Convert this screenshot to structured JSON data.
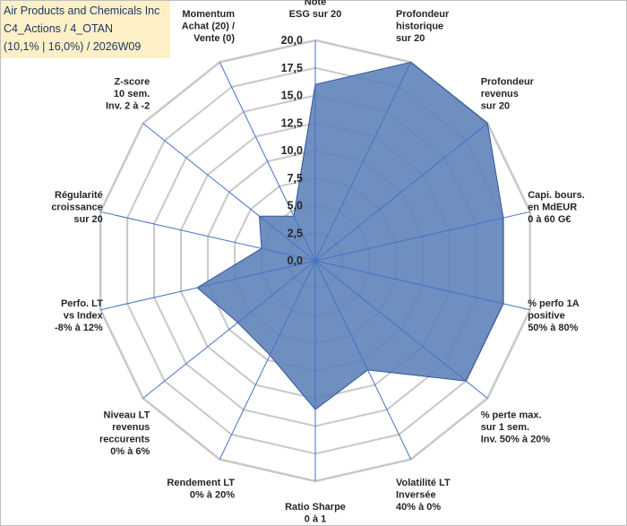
{
  "title": {
    "line1": "Air Products and Chemicals Inc",
    "line2": "C4_Actions / 4_OTAN",
    "line3": "(10,1% | 16,0%) / 2026W09"
  },
  "colors": {
    "grid": "#c8c8c8",
    "spoke": "#4472c4",
    "fill": "#5b7fb8",
    "outline": "#2f5597"
  },
  "chart_data": {
    "type": "radar",
    "rmin": 0,
    "rmax": 20,
    "ticks": [
      0,
      2.5,
      5,
      7.5,
      10,
      12.5,
      15,
      17.5,
      20
    ],
    "tick_labels": [
      "0,0",
      "2,5",
      "5,0",
      "7,5",
      "10,0",
      "12,5",
      "15,0",
      "17,5",
      "20,0"
    ],
    "axes": [
      {
        "label": [
          "Note",
          "ESG sur 20"
        ],
        "value": 16
      },
      {
        "label": [
          "Profondeur",
          "historique",
          "sur 20"
        ],
        "value": 20
      },
      {
        "label": [
          "Profondeur",
          "revenus",
          "sur 20"
        ],
        "value": 20
      },
      {
        "label": [
          "Capi. bours.",
          "en MdEUR",
          "0 à 60 G€"
        ],
        "value": 17.5
      },
      {
        "label": [
          "% perfo 1A",
          "positive",
          "50% à 80%"
        ],
        "value": 17.5
      },
      {
        "label": [
          "% perte max.",
          "sur 1 sem.",
          "Inv. 50% à 20%"
        ],
        "value": 17.5
      },
      {
        "label": [
          "Volatilité LT",
          "Inversée",
          "40% à 0%"
        ],
        "value": 11
      },
      {
        "label": [
          "Ratio Sharpe",
          "0 à 1"
        ],
        "value": 13.5
      },
      {
        "label": [
          "Rendement LT",
          "0% à 20%"
        ],
        "value": 9.5
      },
      {
        "label": [
          "Niveau LT",
          "revenus",
          "reccurents",
          "0% à 6%"
        ],
        "value": 9
      },
      {
        "label": [
          "Perfo. LT",
          "vs Index",
          "-8% à 12%"
        ],
        "value": 11
      },
      {
        "label": [
          "Régularité",
          "croissance",
          "sur 20"
        ],
        "value": 5
      },
      {
        "label": [
          "Z-score",
          "10 sem.",
          "Inv. 2 à -2"
        ],
        "value": 6.5
      },
      {
        "label": [
          "Momentum",
          "Achat (20) /",
          "Vente (0)"
        ],
        "value": 4.5
      }
    ]
  }
}
